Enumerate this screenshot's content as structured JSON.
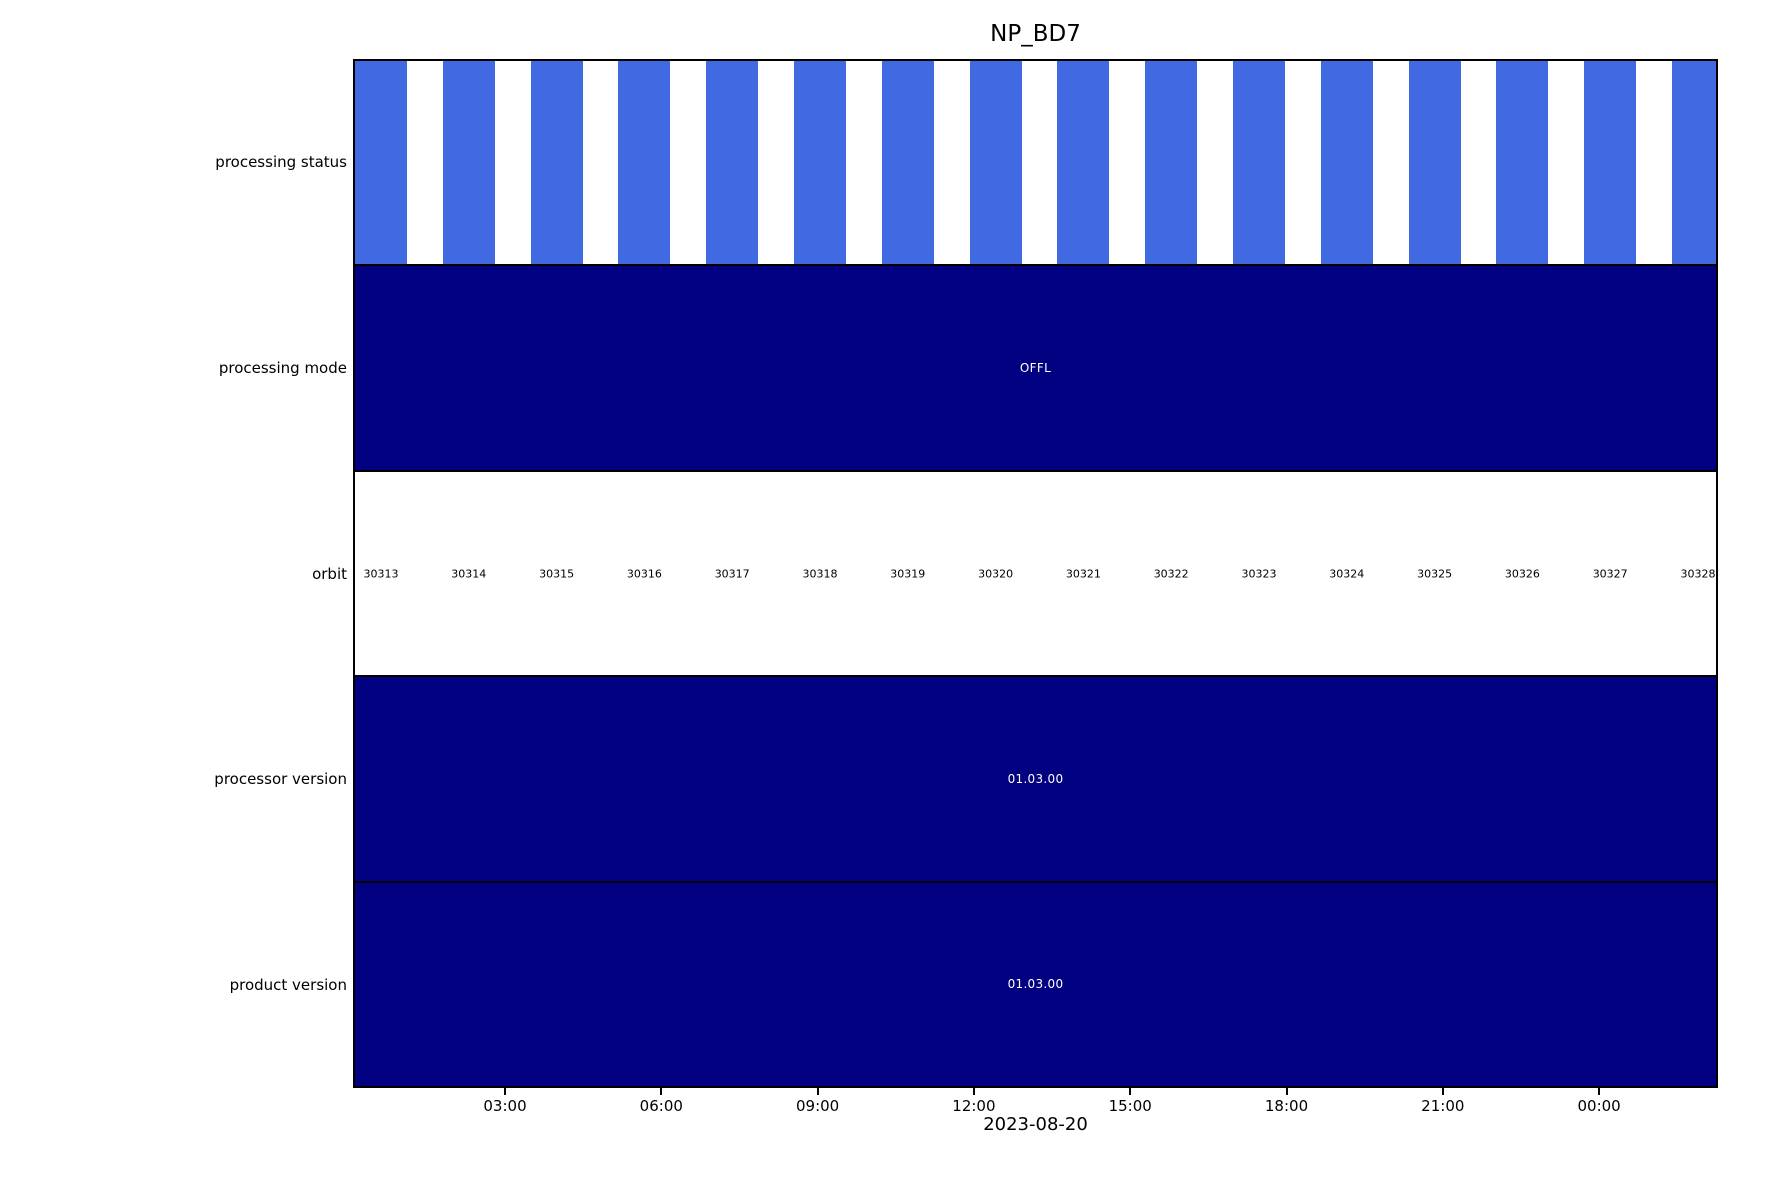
{
  "colors": {
    "status_bar_blue": "#4169E1",
    "band_navy": "#000080",
    "text_on_navy": "#FFFFFF",
    "axis_text": "#000000"
  },
  "chart_data": {
    "type": "timeline-status-bands",
    "title": "NP_BD7",
    "date_label": "2023-08-20",
    "x_ticks": [
      "03:00",
      "06:00",
      "09:00",
      "12:00",
      "15:00",
      "18:00",
      "21:00",
      "00:00"
    ],
    "row_labels": [
      "processing status",
      "processing mode",
      "orbit",
      "processor version",
      "product version"
    ],
    "orbits": [
      "30313",
      "30314",
      "30315",
      "30316",
      "30317",
      "30318",
      "30319",
      "30320",
      "30321",
      "30322",
      "30323",
      "30324",
      "30325",
      "30326",
      "30327",
      "30328"
    ],
    "processing_status": "one blue bar per orbit",
    "processing_mode": "OFFL",
    "processor_version": "01.03.00",
    "product_version": "01.03.00",
    "legend": "none",
    "grid": "off"
  }
}
